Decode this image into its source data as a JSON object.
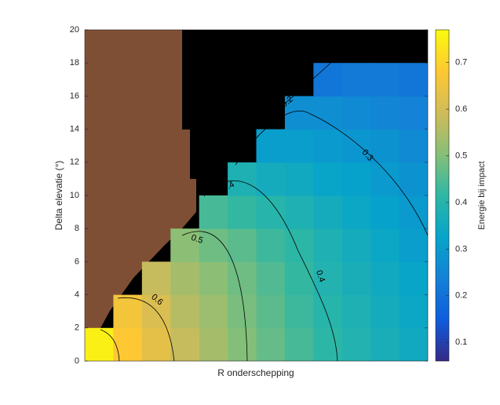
{
  "chart_data": {
    "type": "heatmap",
    "ylabel": "Delta elevatie (°)",
    "xlabel": "R onderschepping",
    "ylim": [
      0,
      20
    ],
    "yticks": [
      0,
      2,
      4,
      6,
      8,
      10,
      12,
      14,
      16,
      18,
      20
    ],
    "z": [
      [
        0.75,
        0.68,
        0.63,
        0.58,
        0.54,
        0.5,
        0.47,
        0.44,
        0.41,
        0.39,
        0.37,
        0.35
      ],
      [
        null,
        0.66,
        0.61,
        0.56,
        0.53,
        0.49,
        0.46,
        0.43,
        0.4,
        0.38,
        0.36,
        0.34
      ],
      [
        null,
        null,
        0.58,
        0.54,
        0.51,
        0.48,
        0.45,
        0.42,
        0.39,
        0.37,
        0.35,
        0.33
      ],
      [
        null,
        null,
        null,
        0.51,
        0.48,
        0.46,
        0.43,
        0.41,
        0.38,
        0.36,
        0.34,
        0.31
      ],
      [
        null,
        null,
        null,
        null,
        0.44,
        0.42,
        0.4,
        0.38,
        0.36,
        0.34,
        0.32,
        0.3
      ],
      [
        null,
        null,
        null,
        null,
        null,
        0.38,
        0.36,
        0.35,
        0.33,
        0.32,
        0.3,
        0.28
      ],
      [
        null,
        null,
        null,
        null,
        null,
        null,
        0.31,
        0.31,
        0.3,
        0.29,
        0.28,
        0.26
      ],
      [
        null,
        null,
        null,
        null,
        null,
        null,
        null,
        0.27,
        0.27,
        0.26,
        0.25,
        0.24
      ],
      [
        null,
        null,
        null,
        null,
        null,
        null,
        null,
        null,
        0.21,
        0.22,
        0.22,
        0.21
      ],
      [
        null,
        null,
        null,
        null,
        null,
        null,
        null,
        null,
        null,
        null,
        null,
        null
      ]
    ],
    "colormap": [
      "#352a87",
      "#0f5cdd",
      "#1481d6",
      "#06a4ca",
      "#2eb7a4",
      "#87bf77",
      "#d1bb59",
      "#fec832",
      "#f9fb0e"
    ],
    "clim": [
      0.06,
      0.77
    ],
    "colorbar_label": "Energie bij impact",
    "colorbar_ticks": [
      0.1,
      0.2,
      0.3,
      0.4,
      0.5,
      0.6,
      0.7
    ],
    "contour_levels": [
      0.2,
      0.3,
      0.4,
      0.5,
      0.6
    ]
  }
}
